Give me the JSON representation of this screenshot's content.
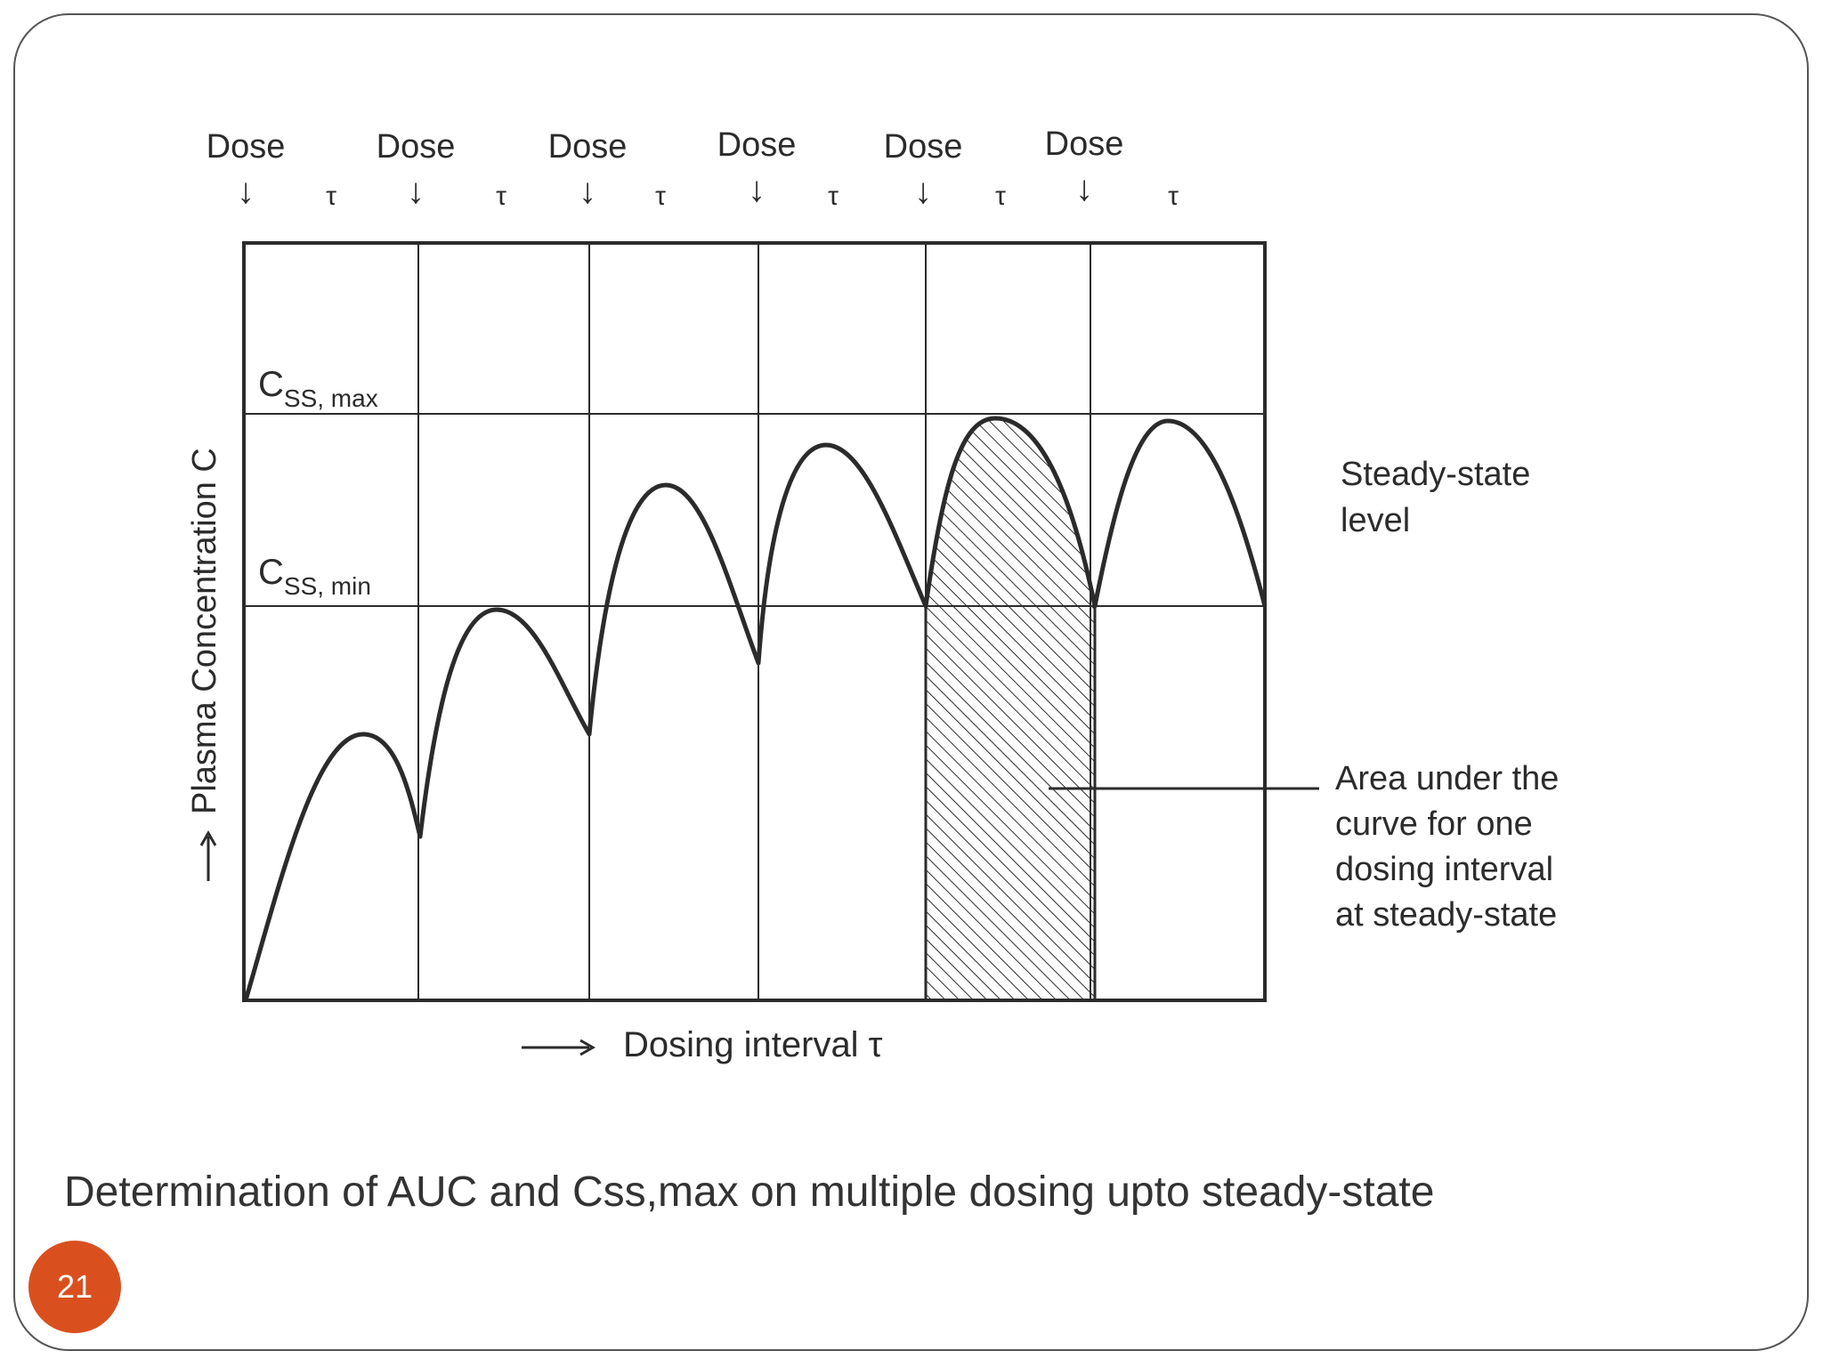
{
  "slide": {
    "caption": "Determination of AUC and Css,max on multiple dosing upto steady-state",
    "page_number": "21"
  },
  "colors": {
    "ink": "#2b2b2b",
    "badge": "#d9501e",
    "caption": "#333333"
  },
  "diagram": {
    "dose_label": "Dose",
    "tau_symbol": "τ",
    "doses": [
      {
        "label": "Dose"
      },
      {
        "label": "Dose"
      },
      {
        "label": "Dose"
      },
      {
        "label": "Dose"
      },
      {
        "label": "Dose"
      },
      {
        "label": "Dose"
      }
    ],
    "y_axis_label": "Plasma Concentration C",
    "x_axis_label": "Dosing interval τ",
    "css_max": {
      "main": "C",
      "sub": "SS, max"
    },
    "css_min": {
      "main": "C",
      "sub": "SS, min"
    },
    "steady_state_label": [
      "Steady-state",
      "level"
    ],
    "auc_label": [
      "Area under the",
      "curve for one",
      "dosing interval",
      "at steady-state"
    ]
  }
}
